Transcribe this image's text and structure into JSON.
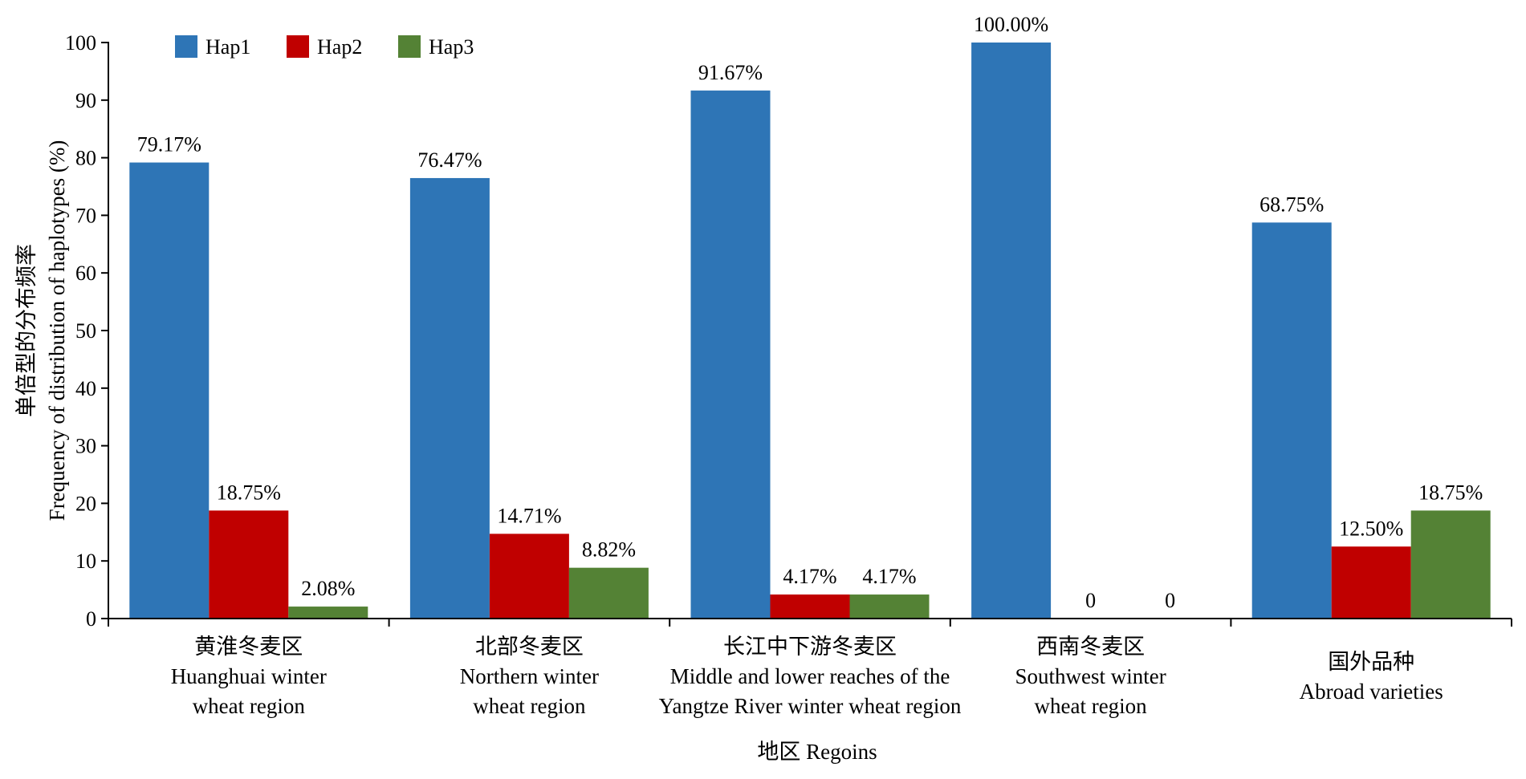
{
  "chart_data": {
    "type": "bar",
    "title": "",
    "xlabel": "地区 Regoins",
    "ylabel": [
      "单倍型的分布频率",
      "Frequency of distribution of haplotypes (%)"
    ],
    "ylim": [
      0,
      100
    ],
    "yticks": [
      0,
      10,
      20,
      30,
      40,
      50,
      60,
      70,
      80,
      90,
      100
    ],
    "grid": false,
    "legend_position": "top-left",
    "categories": [
      [
        "黄淮冬麦区",
        "Huanghuai winter",
        "wheat region"
      ],
      [
        "北部冬麦区",
        "Northern winter",
        "wheat region"
      ],
      [
        "长江中下游冬麦区",
        "Middle and lower reaches of the",
        "Yangtze River winter wheat region"
      ],
      [
        "西南冬麦区",
        "Southwest winter",
        "wheat region"
      ],
      [
        "国外品种",
        "Abroad varieties"
      ]
    ],
    "series": [
      {
        "name": "Hap1",
        "color": "#2e75b6",
        "values": [
          79.17,
          76.47,
          91.67,
          100.0,
          68.75
        ],
        "labels": [
          "79.17%",
          "76.47%",
          "91.67%",
          "100.00%",
          "68.75%"
        ]
      },
      {
        "name": "Hap2",
        "color": "#c00000",
        "values": [
          18.75,
          14.71,
          4.17,
          0,
          12.5
        ],
        "labels": [
          "18.75%",
          "14.71%",
          "4.17%",
          "0",
          "12.50%"
        ]
      },
      {
        "name": "Hap3",
        "color": "#548235",
        "values": [
          2.08,
          8.82,
          4.17,
          0,
          18.75
        ],
        "labels": [
          "2.08%",
          "8.82%",
          "4.17%",
          "0",
          "18.75%"
        ]
      }
    ]
  }
}
